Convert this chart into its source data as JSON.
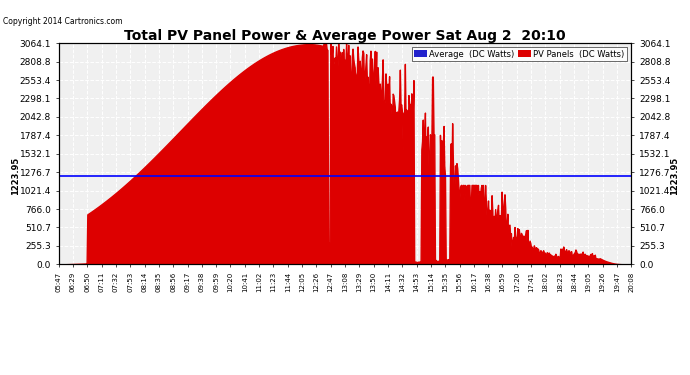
{
  "title": "Total PV Panel Power & Average Power Sat Aug 2  20:10",
  "copyright": "Copyright 2014 Cartronics.com",
  "legend_labels": [
    "Average  (DC Watts)",
    "PV Panels  (DC Watts)"
  ],
  "legend_bg_colors": [
    "#0000cc",
    "#cc0000"
  ],
  "ymax": 3064.1,
  "ymin": 0.0,
  "yticks": [
    0.0,
    255.3,
    510.7,
    766.0,
    1021.4,
    1276.7,
    1532.1,
    1787.4,
    2042.8,
    2298.1,
    2553.4,
    2808.8,
    3064.1
  ],
  "avg_line_y": 1223.95,
  "avg_line_label": "1223.95",
  "background_color": "#ffffff",
  "plot_bg_color": "#f0f0f0",
  "grid_color": "#cccccc",
  "fill_color": "#dd0000",
  "line_color": "#dd0000",
  "avg_color": "#0000ff",
  "xtick_labels": [
    "05:47",
    "06:29",
    "06:50",
    "07:11",
    "07:32",
    "07:53",
    "08:14",
    "08:35",
    "08:56",
    "09:17",
    "09:38",
    "09:59",
    "10:20",
    "10:41",
    "11:02",
    "11:23",
    "11:44",
    "12:05",
    "12:26",
    "12:47",
    "13:08",
    "13:29",
    "13:50",
    "14:11",
    "14:32",
    "14:53",
    "15:14",
    "15:35",
    "15:56",
    "16:17",
    "16:38",
    "16:59",
    "17:20",
    "17:41",
    "18:02",
    "18:23",
    "18:44",
    "19:05",
    "19:26",
    "19:47",
    "20:08"
  ]
}
